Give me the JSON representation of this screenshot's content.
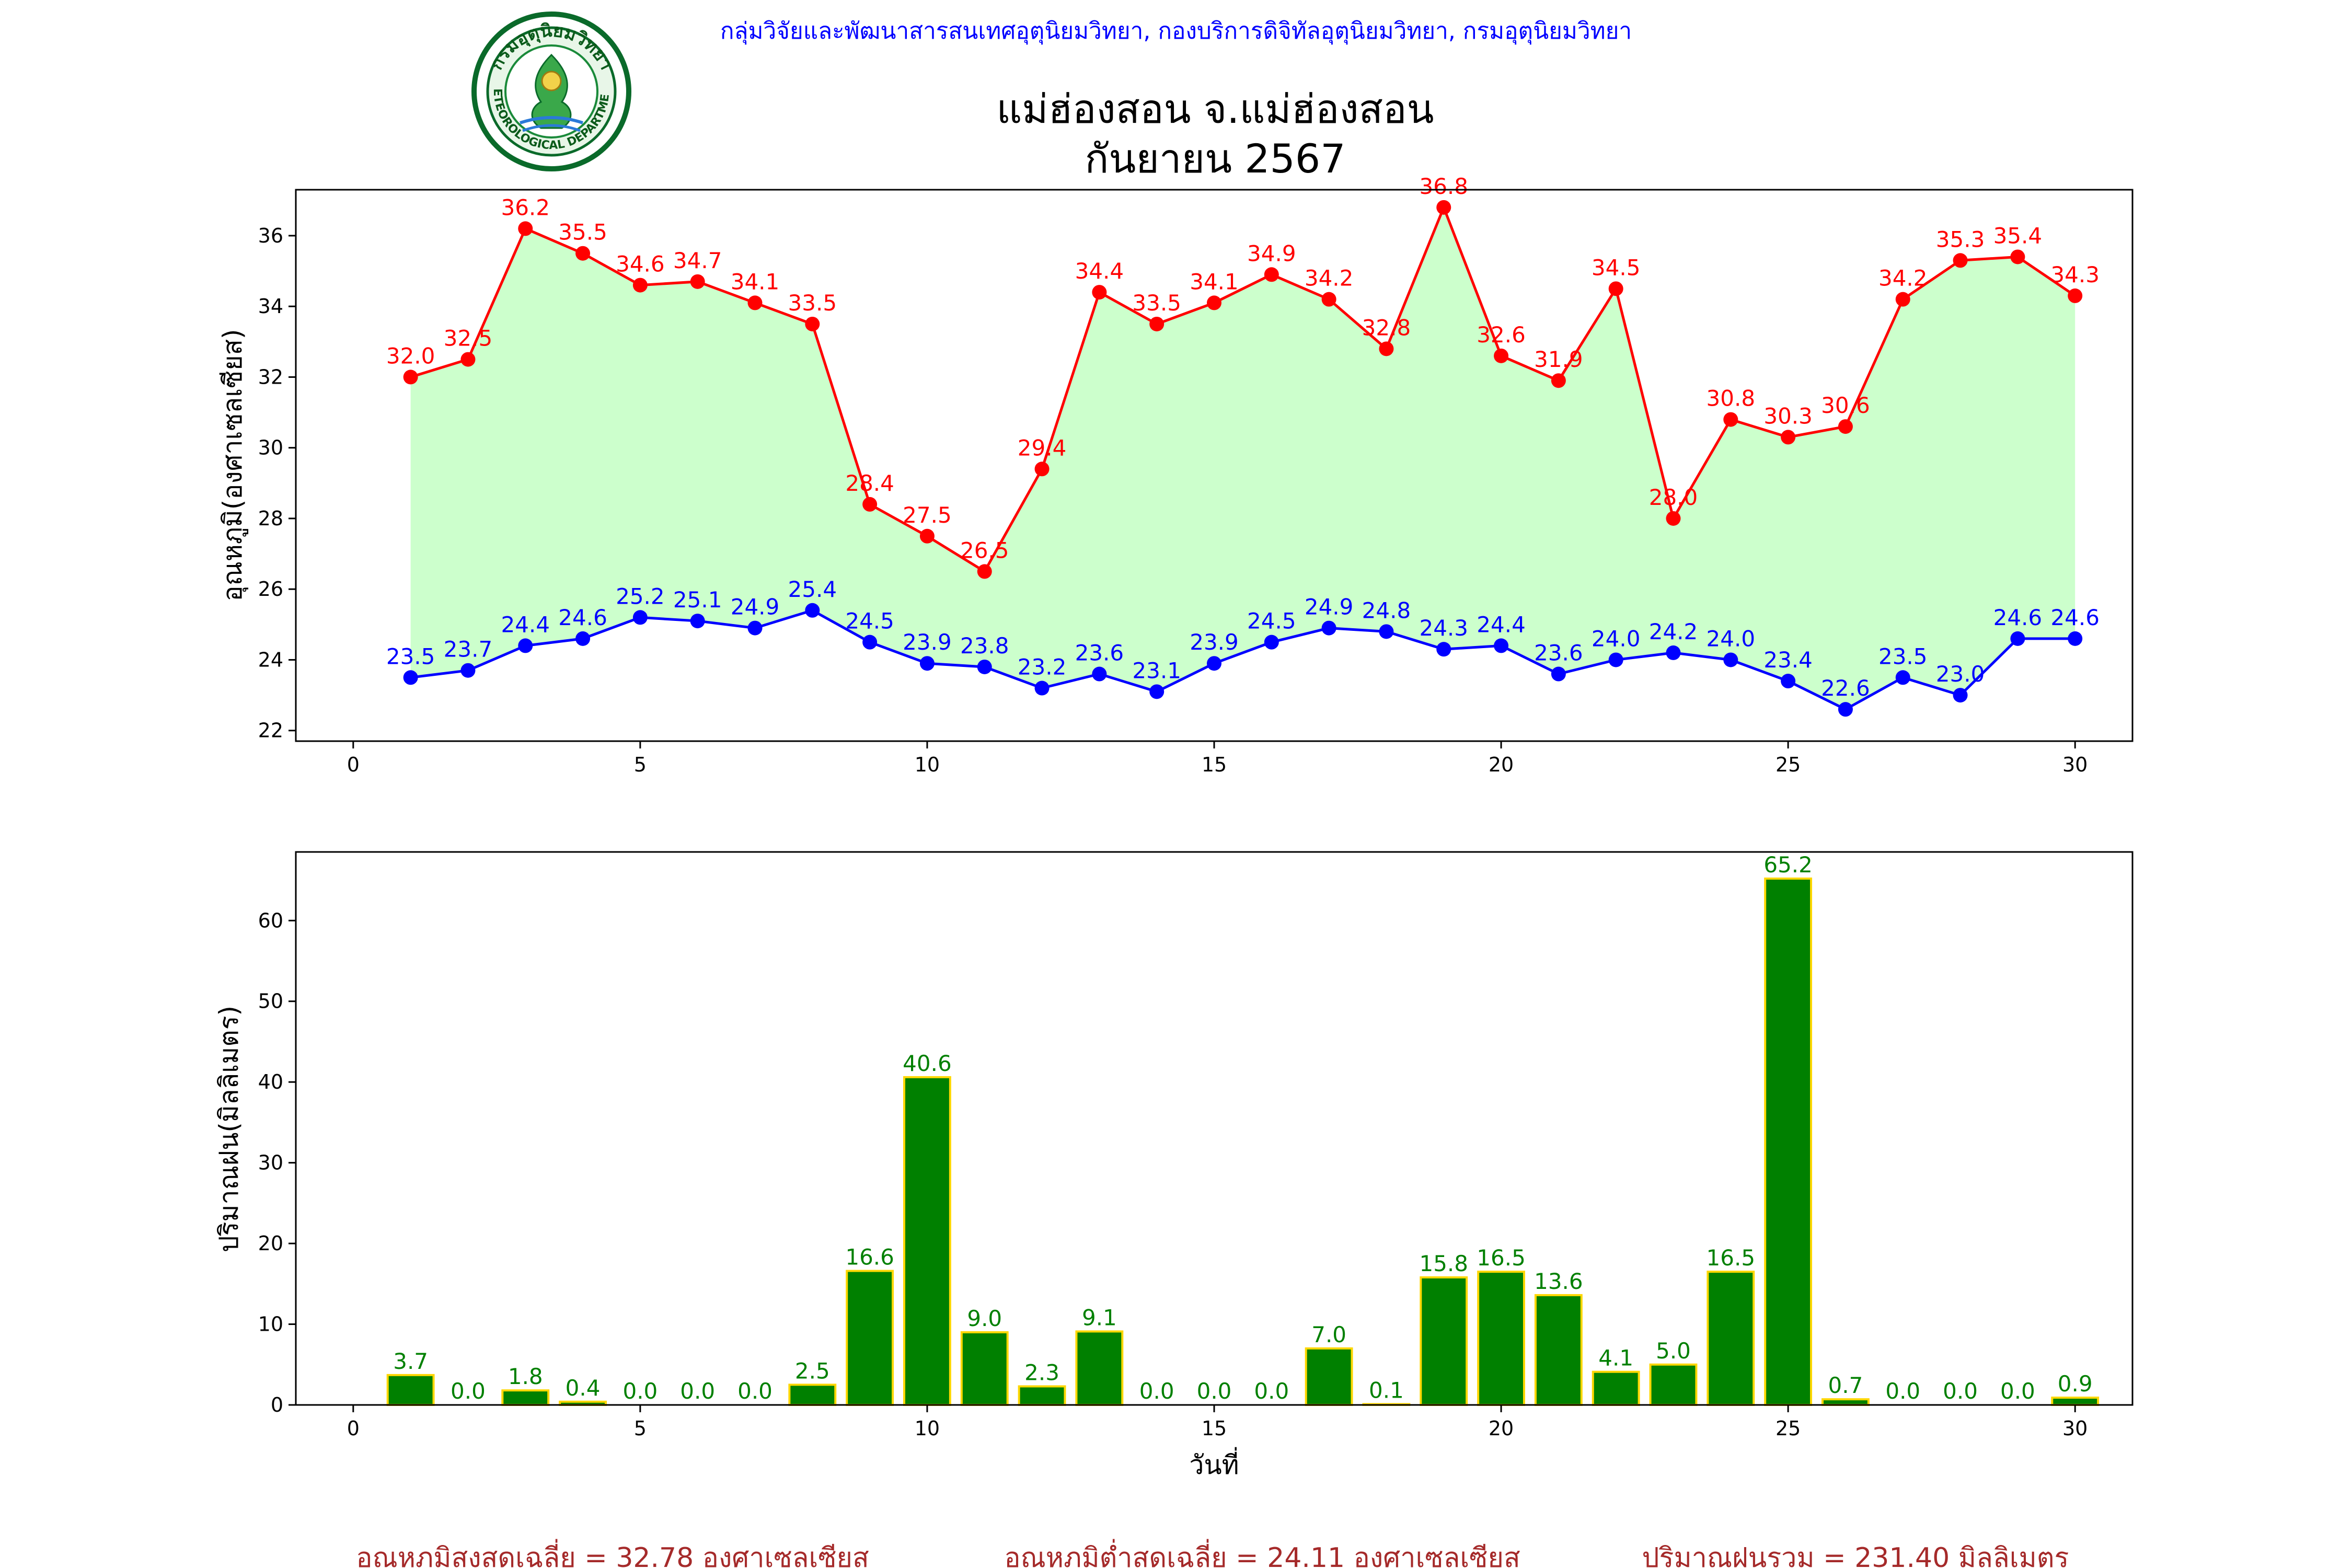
{
  "header": {
    "org_line": "กลุ่มวิจัยและพัฒนาสารสนเทศอุตุนิยมวิทยา, กองบริการดิจิทัลอุตุนิยมวิทยา, กรมอุตุนิยมวิทยา",
    "title_line1": "แม่ฮ่องสอน จ.แม่ฮ่องสอน",
    "title_line2": "กันยายน 2567"
  },
  "logo": {
    "top_text": "กรมอุตุนิยมวิทยา",
    "bottom_text": "METEOROLOGICAL DEPARTMENT"
  },
  "footer": {
    "avg_max": "อุณหภูมิสูงสุดเฉลี่ย = 32.78 องศาเซลเซียส",
    "avg_min": "อุณหภูมิต่ำสุดเฉลี่ย = 24.11 องศาเซลเซียส",
    "total_rain": "ปริมาณฝนรวม = 231.40 มิลลิเมตร"
  },
  "colors": {
    "max_line": "#ff0000",
    "min_line": "#0000ff",
    "fill_between": "#ccffcc",
    "rain_bar": "#008000",
    "rain_bar_edge": "#ffd700",
    "header": "#0000ff",
    "footer": "#a52a2a"
  },
  "chart_data": [
    {
      "type": "line",
      "ylabel": "อุณหภูมิ(องศาเซลเซียส)",
      "xlabel": "",
      "xlim": [
        -1,
        31
      ],
      "ylim": [
        21.7,
        37.3
      ],
      "xticks": [
        0,
        5,
        10,
        15,
        20,
        25,
        30
      ],
      "yticks": [
        22,
        24,
        26,
        28,
        30,
        32,
        34,
        36
      ],
      "x": [
        1,
        2,
        3,
        4,
        5,
        6,
        7,
        8,
        9,
        10,
        11,
        12,
        13,
        14,
        15,
        16,
        17,
        18,
        19,
        20,
        21,
        22,
        23,
        24,
        25,
        26,
        27,
        28,
        29,
        30
      ],
      "fill_between": true,
      "series": [
        {
          "key": "max",
          "values": [
            32.0,
            32.5,
            36.2,
            35.5,
            34.6,
            34.7,
            34.1,
            33.5,
            28.4,
            27.5,
            26.5,
            29.4,
            34.4,
            33.5,
            34.1,
            34.9,
            34.2,
            32.8,
            36.8,
            32.6,
            31.9,
            34.5,
            28.0,
            30.8,
            30.3,
            30.6,
            34.2,
            35.3,
            35.4,
            34.3
          ]
        },
        {
          "key": "min",
          "values": [
            23.5,
            23.7,
            24.4,
            24.6,
            25.2,
            25.1,
            24.9,
            25.4,
            24.5,
            23.9,
            23.8,
            23.2,
            23.6,
            23.1,
            23.9,
            24.5,
            24.9,
            24.8,
            24.3,
            24.4,
            23.6,
            24.0,
            24.2,
            24.0,
            23.4,
            22.6,
            23.5,
            23.0,
            24.6,
            24.6
          ]
        }
      ]
    },
    {
      "type": "bar",
      "ylabel": "ปริมาณฝน(มิลลิเมตร)",
      "xlabel": "วันที่",
      "xlim": [
        -1,
        31
      ],
      "ylim": [
        0,
        68.5
      ],
      "xticks": [
        0,
        5,
        10,
        15,
        20,
        25,
        30
      ],
      "yticks": [
        0,
        10,
        20,
        30,
        40,
        50,
        60
      ],
      "x": [
        1,
        2,
        3,
        4,
        5,
        6,
        7,
        8,
        9,
        10,
        11,
        12,
        13,
        14,
        15,
        16,
        17,
        18,
        19,
        20,
        21,
        22,
        23,
        24,
        25,
        26,
        27,
        28,
        29,
        30
      ],
      "values": [
        3.7,
        0.0,
        1.8,
        0.4,
        0.0,
        0.0,
        0.0,
        2.5,
        16.6,
        40.6,
        9.0,
        2.3,
        9.1,
        0.0,
        0.0,
        0.0,
        7.0,
        0.1,
        15.8,
        16.5,
        13.6,
        4.1,
        5.0,
        16.5,
        65.2,
        0.7,
        0.0,
        0.0,
        0.0,
        0.9
      ]
    }
  ]
}
